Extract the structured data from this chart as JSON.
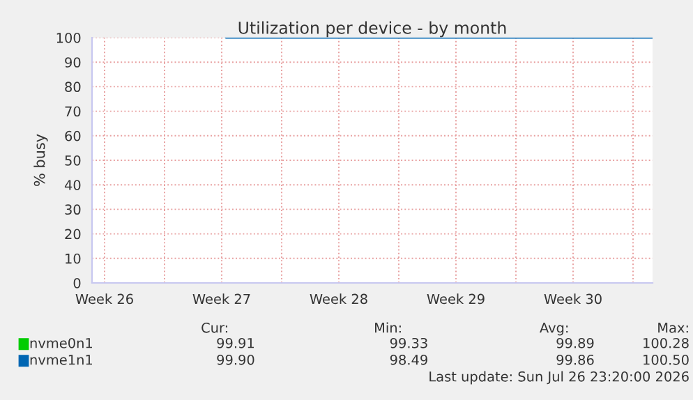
{
  "chart_data": {
    "type": "line",
    "title": "Utilization per device - by month",
    "ylabel": "% busy",
    "xlim": [
      "2026-06-24T16:00",
      "2026-07-28T04:00"
    ],
    "xticks": [
      {
        "value": "2026-06-25T10:00",
        "label": "Week 26"
      },
      {
        "value": "2026-06-29",
        "label": null
      },
      {
        "value": "2026-07-02T10:00",
        "label": "Week 27"
      },
      {
        "value": "2026-07-06",
        "label": null
      },
      {
        "value": "2026-07-09T10:00",
        "label": "Week 28"
      },
      {
        "value": "2026-07-13",
        "label": null
      },
      {
        "value": "2026-07-16T10:00",
        "label": "Week 29"
      },
      {
        "value": "2026-07-20",
        "label": null
      },
      {
        "value": "2026-07-23T10:00",
        "label": "Week 30"
      },
      {
        "value": "2026-07-27",
        "label": null
      }
    ],
    "ylim": [
      0,
      100
    ],
    "yticks": [
      0,
      10,
      20,
      30,
      40,
      50,
      60,
      70,
      80,
      90,
      100
    ],
    "grid": true,
    "legend": "bottom",
    "x": [
      "2026-07-02T16:00",
      "2026-07-28T04:00"
    ],
    "series": [
      {
        "name": "nvme0n1",
        "color": "#00cc00",
        "values": [
          null,
          null
        ]
      },
      {
        "name": "nvme1n1",
        "color": "#0066b3",
        "values": [
          100,
          100
        ]
      }
    ],
    "annotations": [
      "Cur:",
      "Min:",
      "Avg:",
      "Max:",
      "99.91",
      "99.33",
      "99.89",
      "100.28",
      "99.90",
      "98.49",
      "99.86",
      "100.50",
      "Last update: Sun Jul 26 23:20:00 2026"
    ]
  }
}
